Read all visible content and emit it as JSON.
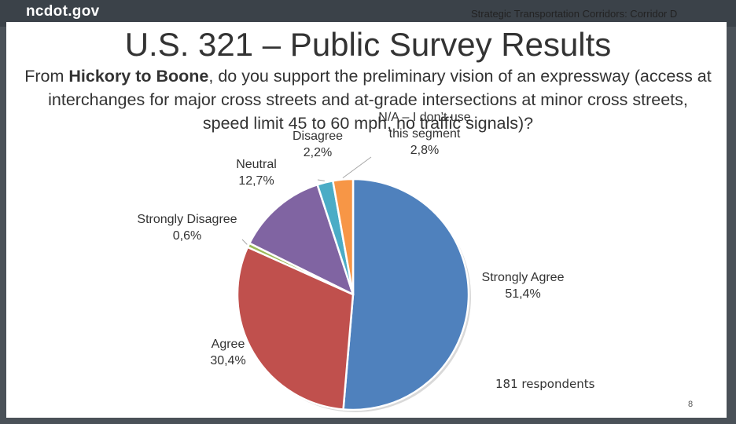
{
  "site": {
    "logo": "ncdot.gov"
  },
  "slide": {
    "header": "Strategic Transportation Corridors: Corridor D",
    "title": "U.S. 321 – Public Survey Results",
    "question_pre": "From ",
    "question_bold": "Hickory to Boone",
    "question_post": ", do you support the preliminary vision of an expressway (access at interchanges for major cross streets and at-grade intersections at minor cross streets, speed limit 45 to 60 mph, no traffic signals)?",
    "respondents": "181 respondents",
    "page_number": "8"
  },
  "chart_data": {
    "type": "pie",
    "unit": "%",
    "slices": [
      {
        "label": "Strongly Agree",
        "value": 51.4,
        "display": "51,4%",
        "color": "#4f81bd"
      },
      {
        "label": "Agree",
        "value": 30.4,
        "display": "30,4%",
        "color": "#c0504d"
      },
      {
        "label": "Strongly Disagree",
        "value": 0.6,
        "display": "0,6%",
        "color": "#9bbb59"
      },
      {
        "label": "Neutral",
        "value": 12.7,
        "display": "12,7%",
        "color": "#8064a2"
      },
      {
        "label": "Disagree",
        "value": 2.2,
        "display": "2,2%",
        "color": "#4bacc6"
      },
      {
        "label": "N/A – I don’t use this segment",
        "label_lines": [
          "N/A – I don’t use",
          "this segment"
        ],
        "value": 2.8,
        "display": "2,8%",
        "color": "#f79646"
      }
    ]
  }
}
